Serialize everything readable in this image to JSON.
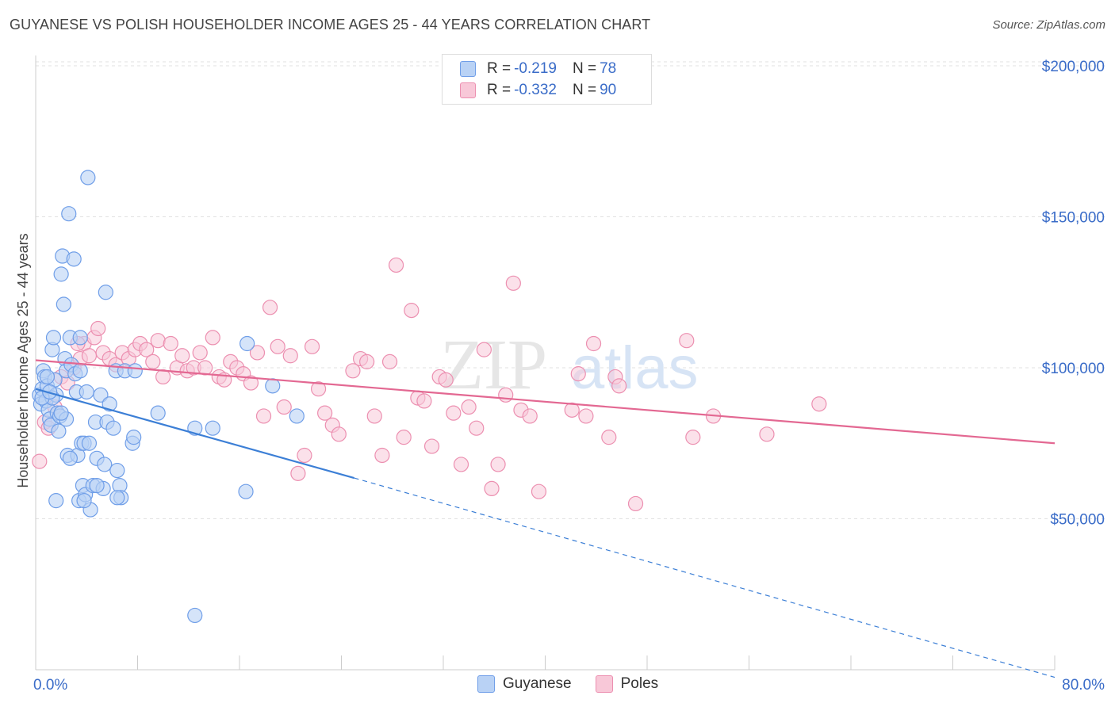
{
  "header": {
    "title": "GUYANESE VS POLISH HOUSEHOLDER INCOME AGES 25 - 44 YEARS CORRELATION CHART",
    "source": "Source: ZipAtlas.com"
  },
  "watermark": {
    "part1": "ZIP",
    "part2": "atlas"
  },
  "legend": {
    "rows": [
      {
        "r_label": "R =",
        "r_value": "-0.219",
        "n_label": "N =",
        "n_value": "78",
        "color": "#6f9ee8",
        "fill": "#b9d2f5"
      },
      {
        "r_label": "R =",
        "r_value": "-0.332",
        "n_label": "N =",
        "n_value": "90",
        "color": "#ec8fb0",
        "fill": "#f8c8d8"
      }
    ]
  },
  "bottom_legend": [
    {
      "label": "Guyanese",
      "color": "#6f9ee8",
      "fill": "#b9d2f5"
    },
    {
      "label": "Poles",
      "color": "#ec8fb0",
      "fill": "#f8c8d8"
    }
  ],
  "chart_data": {
    "type": "scatter",
    "ylabel": "Householder Income Ages 25 - 44 years",
    "xlim": [
      0,
      80
    ],
    "ylim": [
      0,
      210000
    ],
    "x_tick_labels": [
      "0.0%",
      "80.0%"
    ],
    "y_ticks": [
      50000,
      100000,
      150000,
      200000
    ],
    "y_tick_labels": [
      "$50,000",
      "$100,000",
      "$150,000",
      "$200,000"
    ],
    "grid": true,
    "series": [
      {
        "name": "Guyanese",
        "color": "#3c7fd6",
        "fill": "#b9d2f5",
        "trend": {
          "x": [
            0,
            25
          ],
          "y": [
            93000,
            63500
          ],
          "dash_to": [
            80,
            -2500
          ]
        },
        "points": [
          [
            0.3,
            91000
          ],
          [
            0.4,
            88000
          ],
          [
            0.5,
            93000
          ],
          [
            0.6,
            99000
          ],
          [
            0.7,
            97000
          ],
          [
            0.8,
            89000
          ],
          [
            0.9,
            94000
          ],
          [
            1.0,
            86000
          ],
          [
            1.1,
            83000
          ],
          [
            1.2,
            81000
          ],
          [
            1.3,
            106000
          ],
          [
            1.4,
            110000
          ],
          [
            1.5,
            96000
          ],
          [
            1.6,
            91000
          ],
          [
            1.7,
            85000
          ],
          [
            1.8,
            79000
          ],
          [
            1.9,
            84000
          ],
          [
            2.0,
            131000
          ],
          [
            2.1,
            137000
          ],
          [
            2.2,
            121000
          ],
          [
            2.3,
            103000
          ],
          [
            2.4,
            99000
          ],
          [
            2.5,
            71000
          ],
          [
            2.6,
            151000
          ],
          [
            2.7,
            110000
          ],
          [
            2.8,
            101000
          ],
          [
            3.0,
            136000
          ],
          [
            3.1,
            98000
          ],
          [
            3.2,
            92000
          ],
          [
            3.3,
            71000
          ],
          [
            3.4,
            56000
          ],
          [
            3.5,
            110000
          ],
          [
            3.6,
            75000
          ],
          [
            3.7,
            61000
          ],
          [
            3.8,
            75000
          ],
          [
            3.9,
            58000
          ],
          [
            4.0,
            92000
          ],
          [
            4.1,
            163000
          ],
          [
            4.2,
            75000
          ],
          [
            4.3,
            53000
          ],
          [
            4.5,
            61000
          ],
          [
            4.7,
            82000
          ],
          [
            4.8,
            70000
          ],
          [
            5.1,
            91000
          ],
          [
            5.3,
            60000
          ],
          [
            5.4,
            68000
          ],
          [
            5.5,
            125000
          ],
          [
            5.6,
            82000
          ],
          [
            5.8,
            88000
          ],
          [
            6.1,
            80000
          ],
          [
            6.3,
            99000
          ],
          [
            6.4,
            66000
          ],
          [
            6.6,
            61000
          ],
          [
            6.7,
            57000
          ],
          [
            7.0,
            99000
          ],
          [
            7.6,
            75000
          ],
          [
            7.7,
            77000
          ],
          [
            7.8,
            99000
          ],
          [
            9.6,
            85000
          ],
          [
            12.5,
            18000
          ],
          [
            12.5,
            80000
          ],
          [
            13.9,
            80000
          ],
          [
            16.5,
            59000
          ],
          [
            16.6,
            108000
          ],
          [
            18.6,
            94000
          ],
          [
            20.5,
            84000
          ],
          [
            0.9,
            97000
          ],
          [
            1.3,
            90000
          ],
          [
            2.4,
            83000
          ],
          [
            3.8,
            56000
          ],
          [
            1.6,
            56000
          ],
          [
            2.7,
            70000
          ],
          [
            4.8,
            61000
          ],
          [
            0.5,
            90000
          ],
          [
            2.0,
            85000
          ],
          [
            1.1,
            92000
          ],
          [
            3.5,
            99000
          ],
          [
            6.4,
            57000
          ]
        ]
      },
      {
        "name": "Poles",
        "color": "#e36892",
        "fill": "#f8c8d8",
        "trend": {
          "x": [
            0,
            80
          ],
          "y": [
            102500,
            75000
          ]
        },
        "points": [
          [
            0.3,
            69000
          ],
          [
            0.7,
            82000
          ],
          [
            1.0,
            80000
          ],
          [
            1.5,
            87000
          ],
          [
            2.0,
            97000
          ],
          [
            2.5,
            95000
          ],
          [
            3.0,
            100000
          ],
          [
            3.5,
            103000
          ],
          [
            3.8,
            108000
          ],
          [
            4.2,
            104000
          ],
          [
            4.6,
            110000
          ],
          [
            4.9,
            113000
          ],
          [
            5.3,
            105000
          ],
          [
            5.8,
            103000
          ],
          [
            6.3,
            101000
          ],
          [
            6.8,
            105000
          ],
          [
            7.3,
            103000
          ],
          [
            7.8,
            106000
          ],
          [
            8.2,
            108000
          ],
          [
            8.7,
            106000
          ],
          [
            9.2,
            102000
          ],
          [
            9.6,
            109000
          ],
          [
            10.0,
            97000
          ],
          [
            10.6,
            108000
          ],
          [
            11.1,
            100000
          ],
          [
            11.5,
            104000
          ],
          [
            11.9,
            99000
          ],
          [
            12.4,
            100000
          ],
          [
            12.9,
            105000
          ],
          [
            13.3,
            100000
          ],
          [
            13.9,
            110000
          ],
          [
            14.4,
            97000
          ],
          [
            14.8,
            96000
          ],
          [
            15.3,
            102000
          ],
          [
            15.8,
            100000
          ],
          [
            16.3,
            98000
          ],
          [
            16.9,
            95000
          ],
          [
            17.4,
            105000
          ],
          [
            17.9,
            84000
          ],
          [
            18.4,
            120000
          ],
          [
            19.0,
            107000
          ],
          [
            19.5,
            87000
          ],
          [
            20.0,
            104000
          ],
          [
            20.6,
            65000
          ],
          [
            21.1,
            71000
          ],
          [
            21.7,
            107000
          ],
          [
            22.2,
            93000
          ],
          [
            22.7,
            85000
          ],
          [
            23.3,
            81000
          ],
          [
            23.8,
            78000
          ],
          [
            24.9,
            99000
          ],
          [
            25.5,
            103000
          ],
          [
            26.0,
            102000
          ],
          [
            26.6,
            84000
          ],
          [
            27.2,
            71000
          ],
          [
            27.8,
            102000
          ],
          [
            28.3,
            134000
          ],
          [
            28.9,
            77000
          ],
          [
            29.5,
            119000
          ],
          [
            30.0,
            90000
          ],
          [
            30.5,
            89000
          ],
          [
            31.1,
            74000
          ],
          [
            31.7,
            97000
          ],
          [
            32.2,
            96000
          ],
          [
            32.8,
            85000
          ],
          [
            33.4,
            68000
          ],
          [
            34.0,
            87000
          ],
          [
            34.6,
            80000
          ],
          [
            35.2,
            106000
          ],
          [
            35.8,
            60000
          ],
          [
            36.3,
            68000
          ],
          [
            36.9,
            91000
          ],
          [
            37.5,
            128000
          ],
          [
            38.1,
            86000
          ],
          [
            38.8,
            84000
          ],
          [
            39.5,
            59000
          ],
          [
            42.1,
            86000
          ],
          [
            42.6,
            98000
          ],
          [
            43.2,
            84000
          ],
          [
            43.8,
            108000
          ],
          [
            45.0,
            77000
          ],
          [
            45.5,
            97000
          ],
          [
            45.8,
            94000
          ],
          [
            47.1,
            55000
          ],
          [
            51.6,
            77000
          ],
          [
            51.1,
            109000
          ],
          [
            53.2,
            84000
          ],
          [
            57.4,
            78000
          ],
          [
            61.5,
            88000
          ],
          [
            3.3,
            108000
          ]
        ]
      }
    ]
  }
}
